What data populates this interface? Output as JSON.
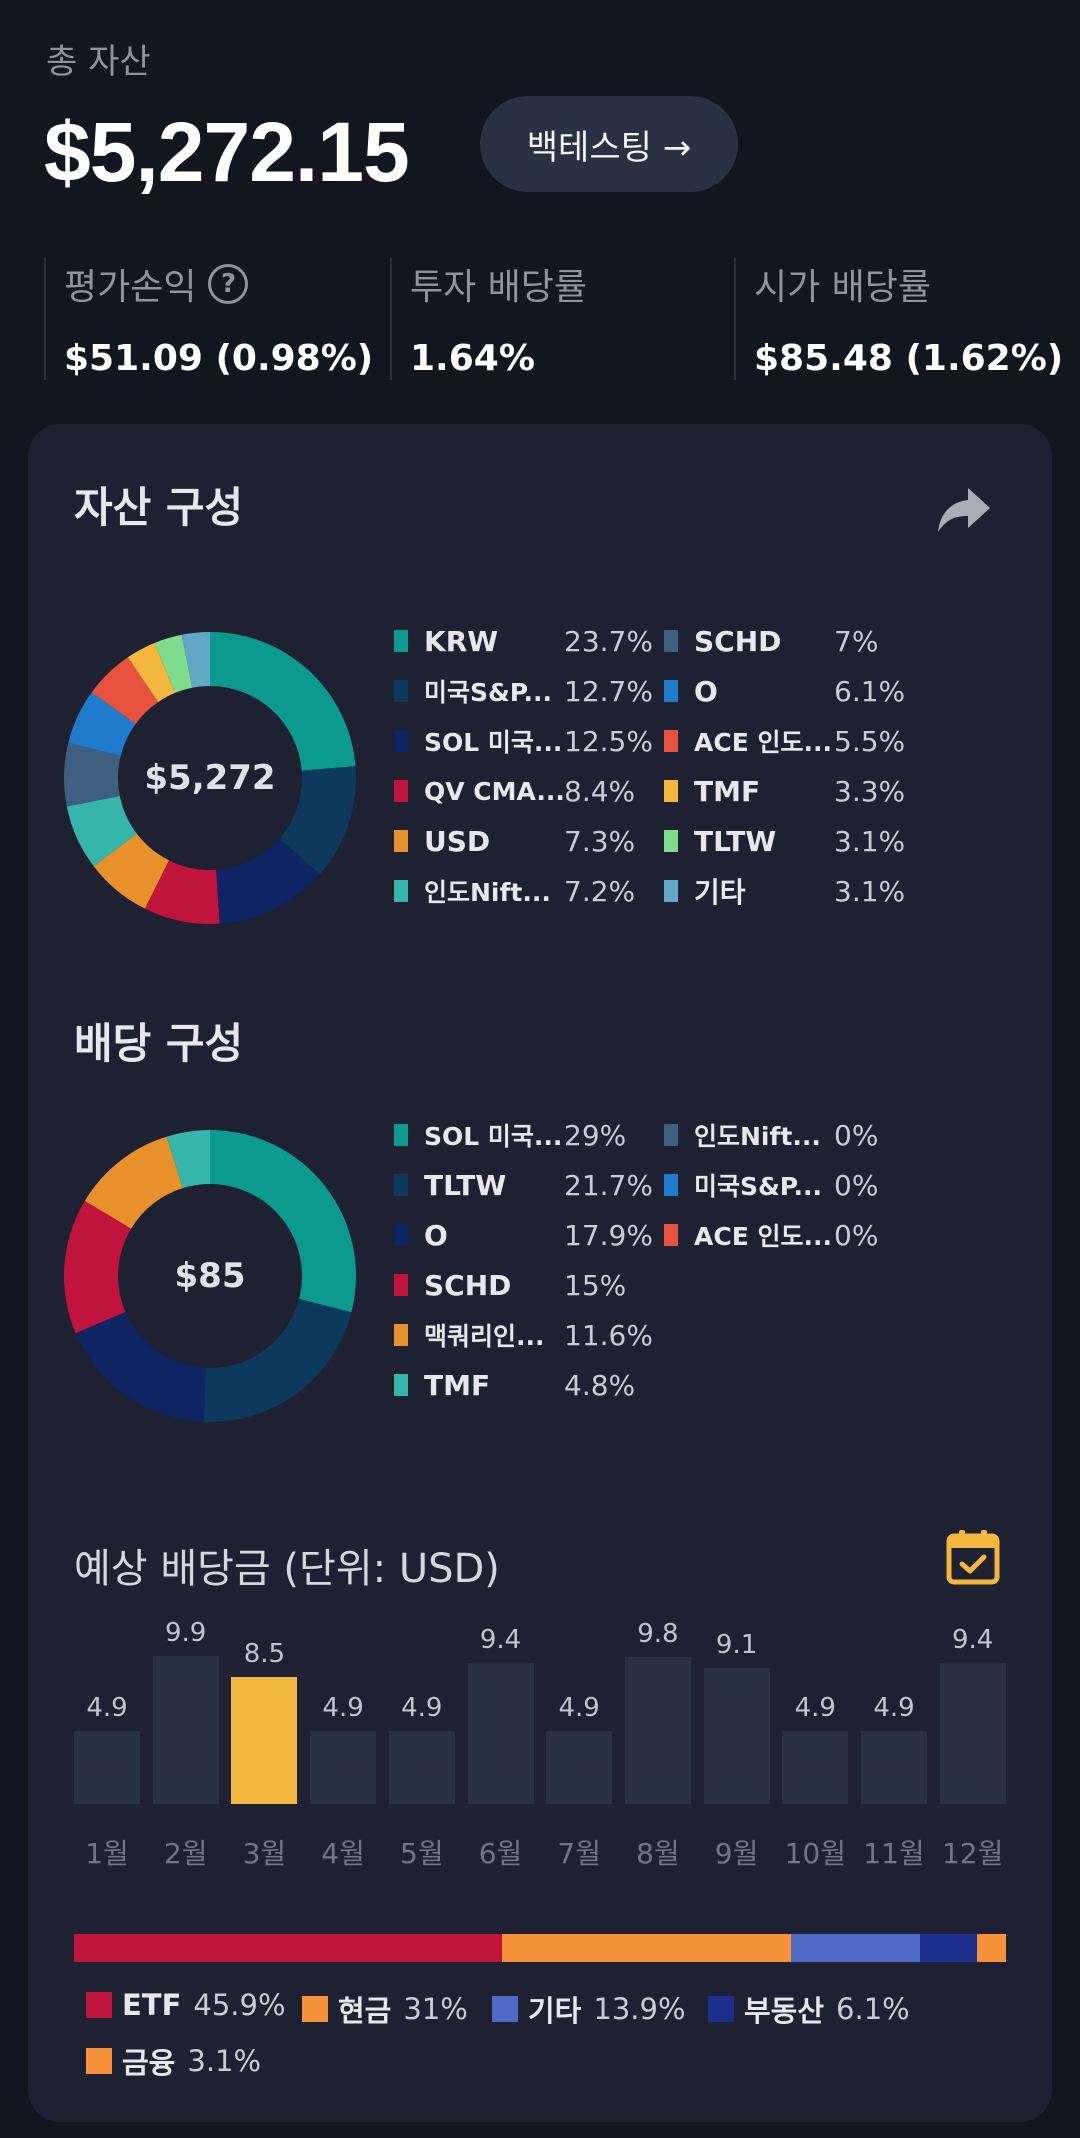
{
  "header": {
    "total_label": "총 자산",
    "total_value": "$5,272.15",
    "backtest_label": "백테스팅 →"
  },
  "stats": [
    {
      "label": "평가손익",
      "value": "$51.09 (0.98%)"
    },
    {
      "label": "투자 배당률",
      "value": "1.64%"
    },
    {
      "label": "시가 배당률",
      "value": "$85.48 (1.62%)"
    }
  ],
  "asset": {
    "title": "자산 구성",
    "center": "$5,272",
    "items": [
      {
        "name": "KRW",
        "pct": "23.7%",
        "value": 23.7,
        "color": "#0b9a8d"
      },
      {
        "name": "미국S&P...",
        "pct": "12.7%",
        "value": 12.7,
        "color": "#0d3a5c"
      },
      {
        "name": "SOL 미국...",
        "pct": "12.5%",
        "value": 12.5,
        "color": "#0f2462"
      },
      {
        "name": "QV CMA...",
        "pct": "8.4%",
        "value": 8.4,
        "color": "#c0143d"
      },
      {
        "name": "USD",
        "pct": "7.3%",
        "value": 7.3,
        "color": "#e8912a"
      },
      {
        "name": "인도Nift...",
        "pct": "7.2%",
        "value": 7.2,
        "color": "#36b5aa"
      },
      {
        "name": "SCHD",
        "pct": "7%",
        "value": 7.0,
        "color": "#3e5f7f"
      },
      {
        "name": "O",
        "pct": "6.1%",
        "value": 6.1,
        "color": "#1f7ccc"
      },
      {
        "name": "ACE 인도...",
        "pct": "5.5%",
        "value": 5.5,
        "color": "#e6523e"
      },
      {
        "name": "TMF",
        "pct": "3.3%",
        "value": 3.3,
        "color": "#f4b73e"
      },
      {
        "name": "TLTW",
        "pct": "3.1%",
        "value": 3.1,
        "color": "#7fdc8c"
      },
      {
        "name": "기타",
        "pct": "3.1%",
        "value": 3.1,
        "color": "#63a7c6"
      }
    ]
  },
  "dividend": {
    "title": "배당 구성",
    "center": "$85",
    "items": [
      {
        "name": "SOL 미국...",
        "pct": "29%",
        "value": 29,
        "color": "#0b9a8d"
      },
      {
        "name": "TLTW",
        "pct": "21.7%",
        "value": 21.7,
        "color": "#0d3a5c"
      },
      {
        "name": "O",
        "pct": "17.9%",
        "value": 17.9,
        "color": "#0f2462"
      },
      {
        "name": "SCHD",
        "pct": "15%",
        "value": 15,
        "color": "#c0143d"
      },
      {
        "name": "맥쿼리인...",
        "pct": "11.6%",
        "value": 11.6,
        "color": "#e8912a"
      },
      {
        "name": "TMF",
        "pct": "4.8%",
        "value": 4.8,
        "color": "#36b5aa"
      },
      {
        "name": "인도Nift...",
        "pct": "0%",
        "value": 0,
        "color": "#3e5f7f"
      },
      {
        "name": "미국S&P...",
        "pct": "0%",
        "value": 0,
        "color": "#1f7ccc"
      },
      {
        "name": "ACE 인도...",
        "pct": "0%",
        "value": 0,
        "color": "#e6523e"
      }
    ]
  },
  "expected": {
    "title": "예상 배당금 (단위: USD)",
    "highlight_index": 2,
    "bars": [
      {
        "month": "1월",
        "value": 4.9,
        "label": "4.9"
      },
      {
        "month": "2월",
        "value": 9.9,
        "label": "9.9"
      },
      {
        "month": "3월",
        "value": 8.5,
        "label": "8.5"
      },
      {
        "month": "4월",
        "value": 4.9,
        "label": "4.9"
      },
      {
        "month": "5월",
        "value": 4.9,
        "label": "4.9"
      },
      {
        "month": "6월",
        "value": 9.4,
        "label": "9.4"
      },
      {
        "month": "7월",
        "value": 4.9,
        "label": "4.9"
      },
      {
        "month": "8월",
        "value": 9.8,
        "label": "9.8"
      },
      {
        "month": "9월",
        "value": 9.1,
        "label": "9.1"
      },
      {
        "month": "10월",
        "value": 4.9,
        "label": "4.9"
      },
      {
        "month": "11월",
        "value": 4.9,
        "label": "4.9"
      },
      {
        "month": "12월",
        "value": 9.4,
        "label": "9.4"
      }
    ]
  },
  "categories": [
    {
      "name": "ETF",
      "pct": "45.9%",
      "value": 45.9,
      "color": "#c0143d"
    },
    {
      "name": "현금",
      "pct": "31%",
      "value": 31,
      "color": "#f7923b"
    },
    {
      "name": "기타",
      "pct": "13.9%",
      "value": 13.9,
      "color": "#4f6ac6"
    },
    {
      "name": "부동산",
      "pct": "6.1%",
      "value": 6.1,
      "color": "#1c2f8c"
    },
    {
      "name": "금융",
      "pct": "3.1%",
      "value": 3.1,
      "color": "#f7923b"
    }
  ],
  "chart_data": [
    {
      "type": "pie",
      "title": "자산 구성",
      "categories": [
        "KRW",
        "미국S&P...",
        "SOL 미국...",
        "QV CMA...",
        "USD",
        "인도Nift...",
        "SCHD",
        "O",
        "ACE 인도...",
        "TMF",
        "TLTW",
        "기타"
      ],
      "values": [
        23.7,
        12.7,
        12.5,
        8.4,
        7.3,
        7.2,
        7,
        6.1,
        5.5,
        3.3,
        3.1,
        3.1
      ]
    },
    {
      "type": "pie",
      "title": "배당 구성",
      "categories": [
        "SOL 미국...",
        "TLTW",
        "O",
        "SCHD",
        "맥쿼리인...",
        "TMF",
        "인도Nift...",
        "미국S&P...",
        "ACE 인도..."
      ],
      "values": [
        29,
        21.7,
        17.9,
        15,
        11.6,
        4.8,
        0,
        0,
        0
      ]
    },
    {
      "type": "bar",
      "title": "예상 배당금 (단위: USD)",
      "categories": [
        "1월",
        "2월",
        "3월",
        "4월",
        "5월",
        "6월",
        "7월",
        "8월",
        "9월",
        "10월",
        "11월",
        "12월"
      ],
      "values": [
        4.9,
        9.9,
        8.5,
        4.9,
        4.9,
        9.4,
        4.9,
        9.8,
        9.1,
        4.9,
        4.9,
        9.4
      ]
    }
  ]
}
